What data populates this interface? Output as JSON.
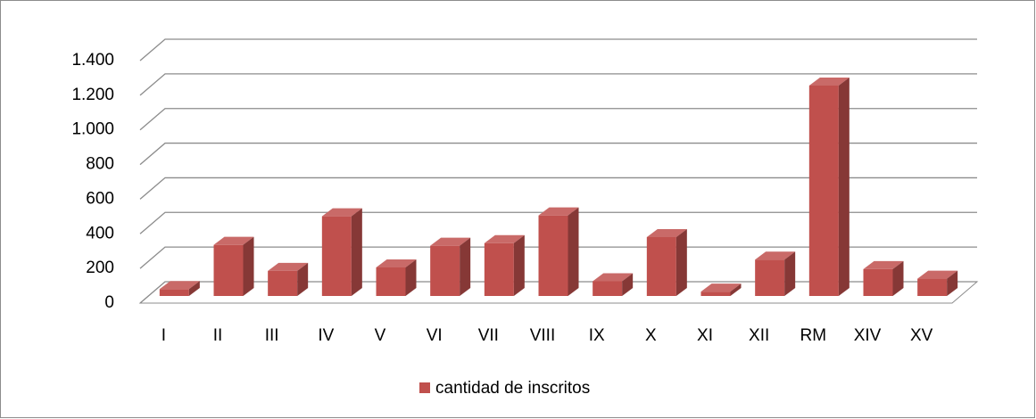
{
  "chart_data": {
    "type": "bar3d",
    "categories": [
      "I",
      "II",
      "III",
      "IV",
      "V",
      "VI",
      "VII",
      "VIII",
      "IX",
      "X",
      "XI",
      "XII",
      "RM",
      "XIV",
      "XV"
    ],
    "series": [
      {
        "name": "cantidad de inscritos",
        "color": "#c0504d",
        "values": [
          40,
          295,
          145,
          460,
          165,
          290,
          305,
          465,
          85,
          340,
          25,
          210,
          1215,
          155,
          100
        ]
      }
    ],
    "ylim": [
      0,
      1400
    ],
    "yticks": [
      0,
      200,
      400,
      600,
      800,
      {
        "value": 1000,
        "label": "1.000"
      },
      {
        "value": 1200,
        "label": "1.200"
      },
      {
        "value": 1400,
        "label": "1.400"
      }
    ],
    "grid": true,
    "legend": "bottom"
  }
}
